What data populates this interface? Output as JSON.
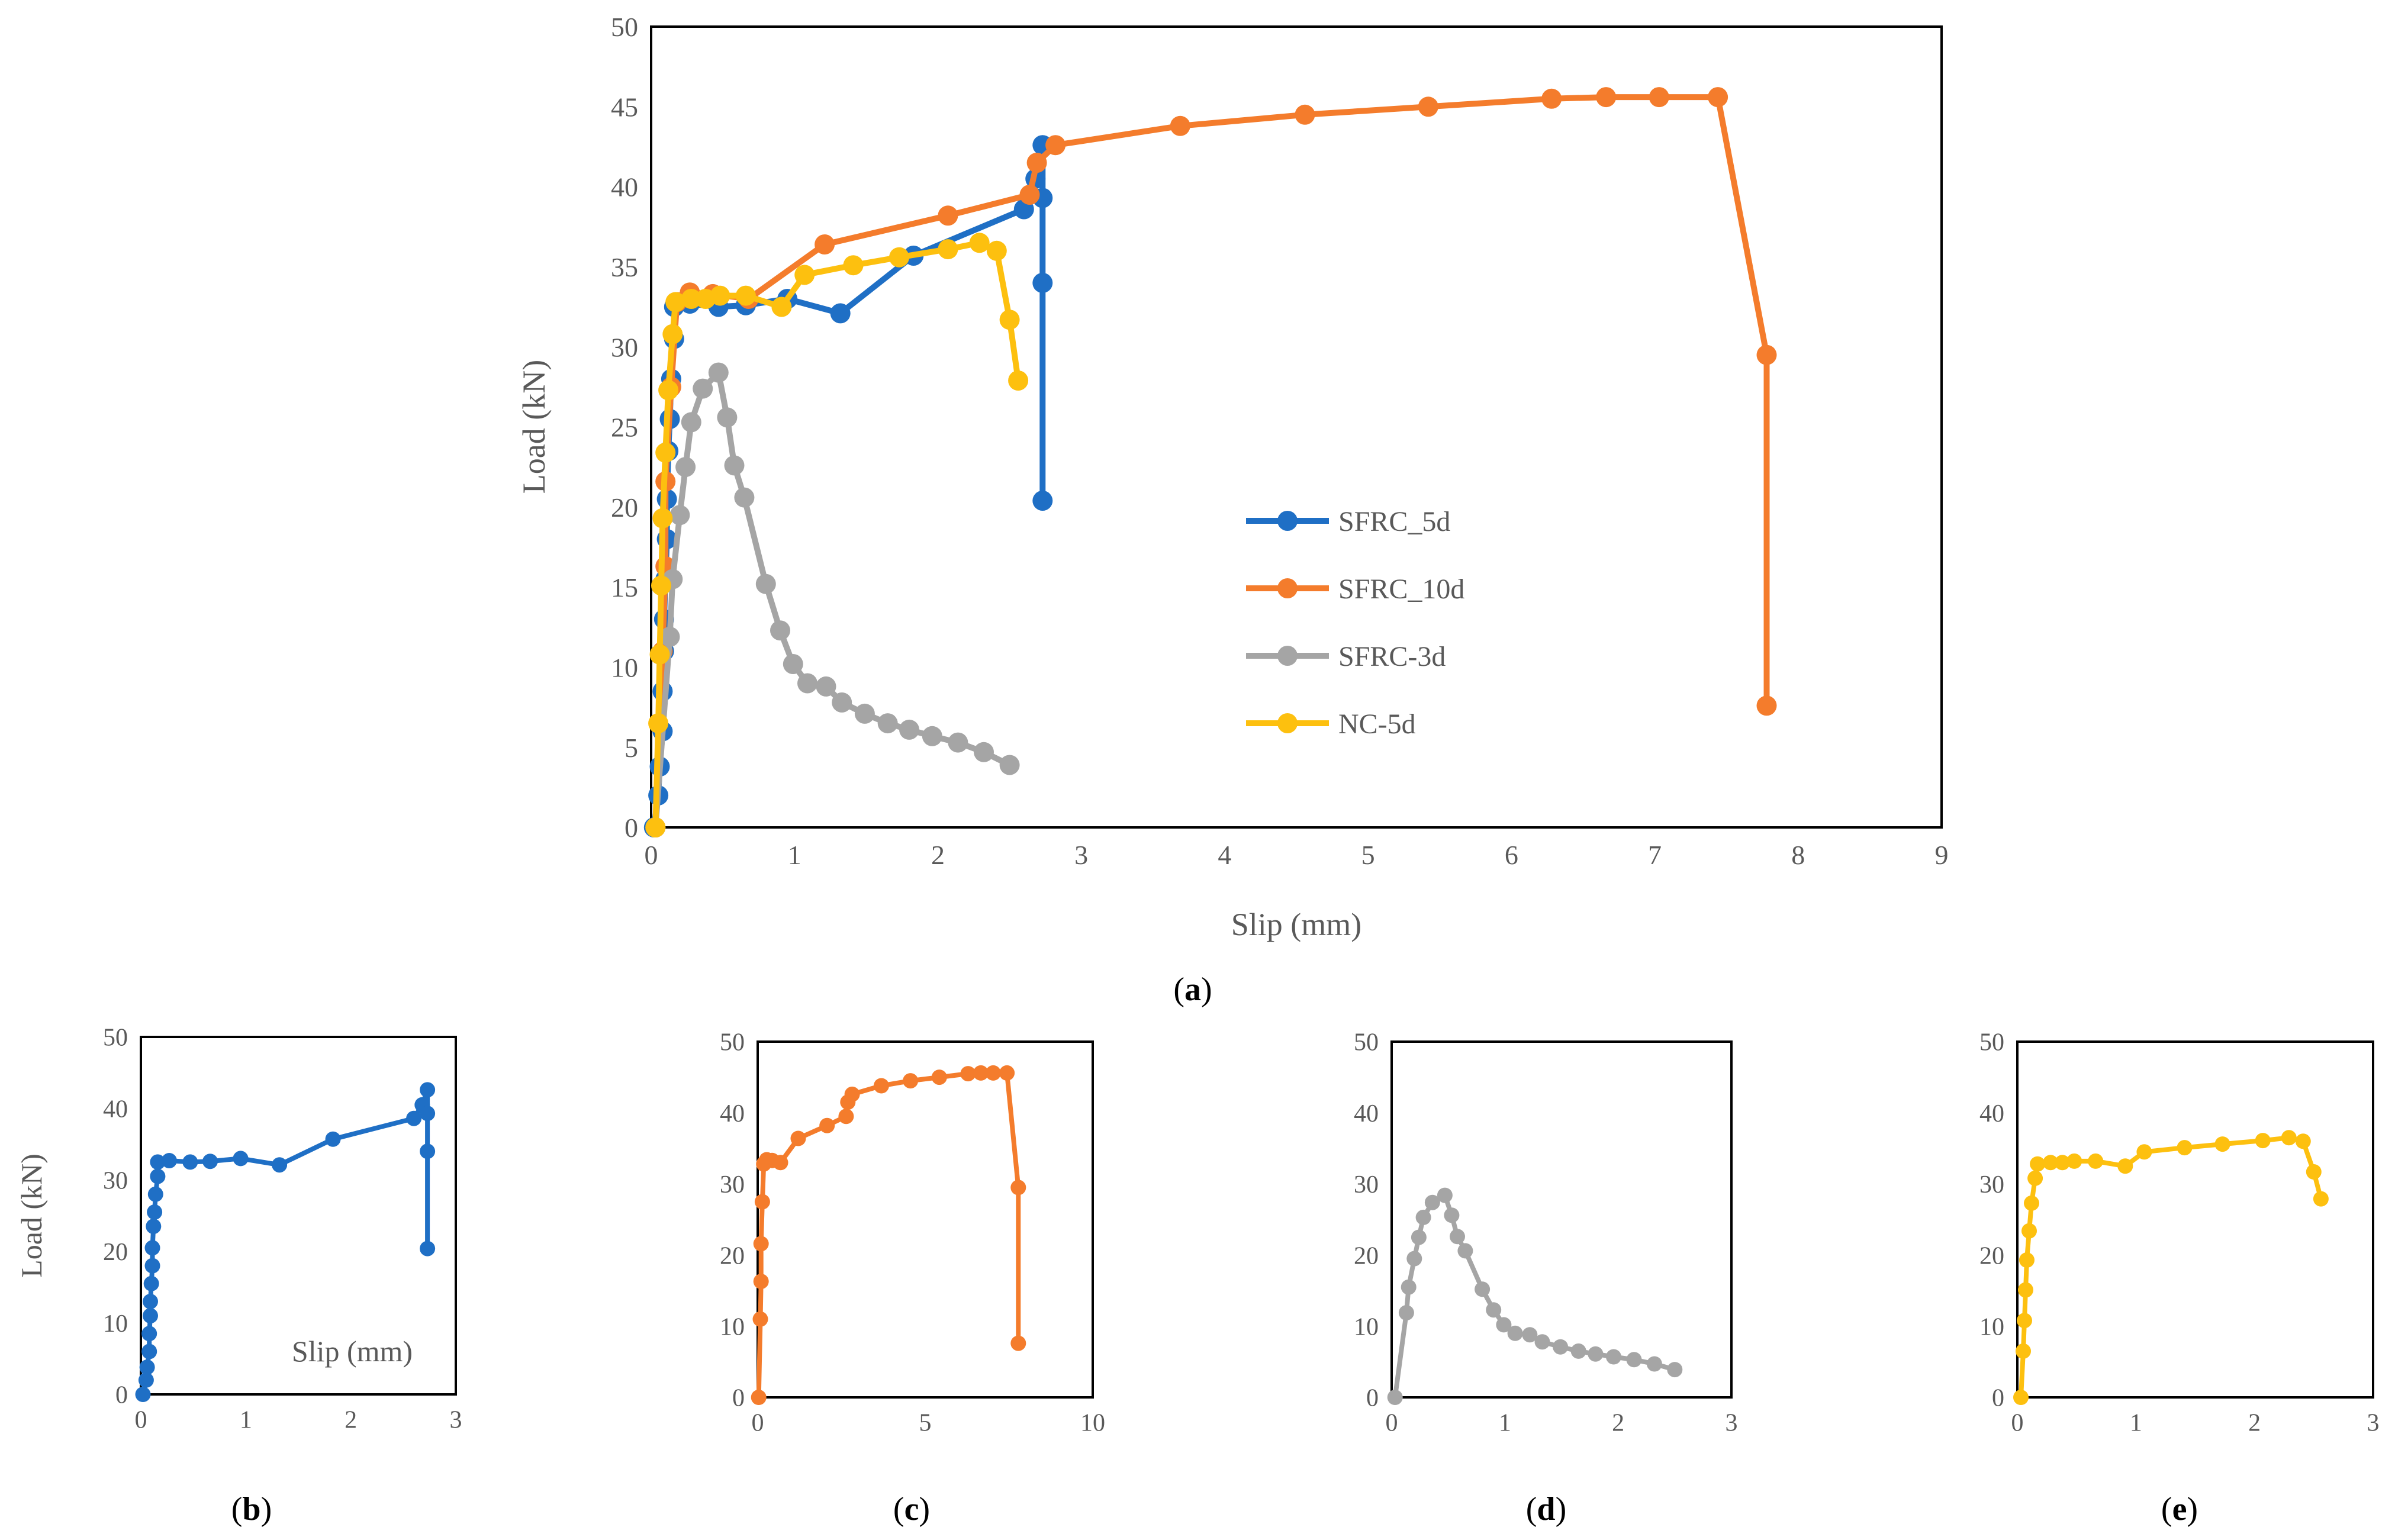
{
  "figure": {
    "caption_labels": [
      "(a)",
      "(b)",
      "(c)",
      "(d)",
      "(e)"
    ]
  },
  "colors": {
    "SFRC_5d": "#1f6fc5",
    "SFRC_10d": "#f47c2c",
    "SFRC_3d": "#a5a5a5",
    "NC_5d": "#fdc00f",
    "axis": "#000000",
    "tick_text": "#595959"
  },
  "chart_data": [
    {
      "id": "a",
      "type": "line",
      "panel_label": "(a)",
      "xlabel": "Slip (mm)",
      "ylabel": "Load (kN)",
      "xlim": [
        0,
        9
      ],
      "ylim": [
        0,
        50
      ],
      "xticks": [
        0,
        1,
        2,
        3,
        4,
        5,
        6,
        7,
        8,
        9
      ],
      "yticks": [
        0,
        5,
        10,
        15,
        20,
        25,
        30,
        35,
        40,
        45,
        50
      ],
      "legend": true,
      "legend_position": "center-right",
      "series": [
        {
          "name": "SFRC_5d",
          "color": "#1f6fc5",
          "points": [
            [
              0.02,
              0
            ],
            [
              0.05,
              2
            ],
            [
              0.06,
              3.8
            ],
            [
              0.08,
              6
            ],
            [
              0.08,
              8.5
            ],
            [
              0.09,
              11
            ],
            [
              0.09,
              13
            ],
            [
              0.1,
              15.5
            ],
            [
              0.11,
              18
            ],
            [
              0.11,
              20.5
            ],
            [
              0.12,
              23.5
            ],
            [
              0.13,
              25.5
            ],
            [
              0.14,
              28
            ],
            [
              0.16,
              30.5
            ],
            [
              0.16,
              32.5
            ],
            [
              0.27,
              32.7
            ],
            [
              0.47,
              32.5
            ],
            [
              0.66,
              32.6
            ],
            [
              0.95,
              33
            ],
            [
              1.32,
              32.1
            ],
            [
              1.83,
              35.7
            ],
            [
              2.6,
              38.6
            ],
            [
              2.68,
              40.5
            ],
            [
              2.73,
              42.6
            ],
            [
              2.73,
              39.3
            ],
            [
              2.73,
              34
            ],
            [
              2.73,
              20.4
            ]
          ]
        },
        {
          "name": "SFRC_10d",
          "color": "#f47c2c",
          "points": [
            [
              0.03,
              0
            ],
            [
              0.08,
              11
            ],
            [
              0.1,
              16.3
            ],
            [
              0.1,
              21.6
            ],
            [
              0.14,
              27.5
            ],
            [
              0.18,
              32.8
            ],
            [
              0.27,
              33.4
            ],
            [
              0.43,
              33.3
            ],
            [
              0.68,
              33
            ],
            [
              1.21,
              36.4
            ],
            [
              2.07,
              38.2
            ],
            [
              2.64,
              39.5
            ],
            [
              2.69,
              41.5
            ],
            [
              2.82,
              42.6
            ],
            [
              3.69,
              43.8
            ],
            [
              4.56,
              44.5
            ],
            [
              5.42,
              45
            ],
            [
              6.28,
              45.5
            ],
            [
              6.66,
              45.6
            ],
            [
              7.03,
              45.6
            ],
            [
              7.44,
              45.6
            ],
            [
              7.78,
              29.5
            ],
            [
              7.78,
              7.6
            ]
          ]
        },
        {
          "name": "SFRC-3d",
          "color": "#a5a5a5",
          "points": [
            [
              0.03,
              0
            ],
            [
              0.13,
              11.9
            ],
            [
              0.15,
              15.5
            ],
            [
              0.2,
              19.5
            ],
            [
              0.24,
              22.5
            ],
            [
              0.28,
              25.3
            ],
            [
              0.36,
              27.4
            ],
            [
              0.47,
              28.4
            ],
            [
              0.53,
              25.6
            ],
            [
              0.58,
              22.6
            ],
            [
              0.65,
              20.6
            ],
            [
              0.8,
              15.2
            ],
            [
              0.9,
              12.3
            ],
            [
              0.99,
              10.2
            ],
            [
              1.09,
              9
            ],
            [
              1.22,
              8.8
            ],
            [
              1.33,
              7.8
            ],
            [
              1.49,
              7.1
            ],
            [
              1.65,
              6.5
            ],
            [
              1.8,
              6.1
            ],
            [
              1.96,
              5.7
            ],
            [
              2.14,
              5.3
            ],
            [
              2.32,
              4.7
            ],
            [
              2.5,
              3.9
            ]
          ]
        },
        {
          "name": "NC-5d",
          "color": "#fdc00f",
          "points": [
            [
              0.03,
              0
            ],
            [
              0.05,
              6.5
            ],
            [
              0.06,
              10.8
            ],
            [
              0.07,
              15.1
            ],
            [
              0.08,
              19.3
            ],
            [
              0.1,
              23.4
            ],
            [
              0.12,
              27.3
            ],
            [
              0.15,
              30.8
            ],
            [
              0.17,
              32.8
            ],
            [
              0.28,
              33
            ],
            [
              0.38,
              33
            ],
            [
              0.48,
              33.2
            ],
            [
              0.66,
              33.2
            ],
            [
              0.91,
              32.5
            ],
            [
              1.07,
              34.5
            ],
            [
              1.41,
              35.1
            ],
            [
              1.73,
              35.6
            ],
            [
              2.07,
              36.1
            ],
            [
              2.29,
              36.5
            ],
            [
              2.41,
              36
            ],
            [
              2.5,
              31.7
            ],
            [
              2.56,
              27.9
            ]
          ]
        }
      ]
    },
    {
      "id": "b",
      "type": "line",
      "panel_label": "(b)",
      "xlabel": "Slip (mm)",
      "ylabel": "Load (kN)",
      "xlim": [
        0,
        3
      ],
      "ylim": [
        0,
        50
      ],
      "xticks": [
        0,
        1,
        2,
        3
      ],
      "yticks": [
        0,
        10,
        20,
        30,
        40,
        50
      ],
      "legend": false,
      "series": [
        {
          "name": "SFRC_5d",
          "color": "#1f6fc5",
          "points": [
            [
              0.02,
              0
            ],
            [
              0.05,
              2
            ],
            [
              0.06,
              3.8
            ],
            [
              0.08,
              6
            ],
            [
              0.08,
              8.5
            ],
            [
              0.09,
              11
            ],
            [
              0.09,
              13
            ],
            [
              0.1,
              15.5
            ],
            [
              0.11,
              18
            ],
            [
              0.11,
              20.5
            ],
            [
              0.12,
              23.5
            ],
            [
              0.13,
              25.5
            ],
            [
              0.14,
              28
            ],
            [
              0.16,
              30.5
            ],
            [
              0.16,
              32.5
            ],
            [
              0.27,
              32.7
            ],
            [
              0.47,
              32.5
            ],
            [
              0.66,
              32.6
            ],
            [
              0.95,
              33
            ],
            [
              1.32,
              32.1
            ],
            [
              1.83,
              35.7
            ],
            [
              2.6,
              38.6
            ],
            [
              2.68,
              40.5
            ],
            [
              2.73,
              42.6
            ],
            [
              2.73,
              39.3
            ],
            [
              2.73,
              34
            ],
            [
              2.73,
              20.4
            ]
          ]
        }
      ]
    },
    {
      "id": "c",
      "type": "line",
      "panel_label": "(c)",
      "xlabel": "",
      "ylabel": "",
      "xlim": [
        0,
        10
      ],
      "ylim": [
        0,
        50
      ],
      "xticks": [
        0,
        5,
        10
      ],
      "yticks": [
        0,
        10,
        20,
        30,
        40,
        50
      ],
      "legend": false,
      "series": [
        {
          "name": "SFRC_10d",
          "color": "#f47c2c",
          "points": [
            [
              0.03,
              0
            ],
            [
              0.08,
              11
            ],
            [
              0.1,
              16.3
            ],
            [
              0.1,
              21.6
            ],
            [
              0.14,
              27.5
            ],
            [
              0.18,
              32.8
            ],
            [
              0.27,
              33.4
            ],
            [
              0.43,
              33.3
            ],
            [
              0.68,
              33
            ],
            [
              1.21,
              36.4
            ],
            [
              2.07,
              38.2
            ],
            [
              2.64,
              39.5
            ],
            [
              2.69,
              41.5
            ],
            [
              2.82,
              42.6
            ],
            [
              3.69,
              43.8
            ],
            [
              4.56,
              44.5
            ],
            [
              5.42,
              45
            ],
            [
              6.28,
              45.5
            ],
            [
              6.66,
              45.6
            ],
            [
              7.03,
              45.6
            ],
            [
              7.44,
              45.6
            ],
            [
              7.78,
              29.5
            ],
            [
              7.78,
              7.6
            ]
          ]
        }
      ]
    },
    {
      "id": "d",
      "type": "line",
      "panel_label": "(d)",
      "xlabel": "",
      "ylabel": "",
      "xlim": [
        0,
        3
      ],
      "ylim": [
        0,
        50
      ],
      "xticks": [
        0,
        1,
        2,
        3
      ],
      "yticks": [
        0,
        10,
        20,
        30,
        40,
        50
      ],
      "legend": false,
      "series": [
        {
          "name": "SFRC-3d",
          "color": "#a5a5a5",
          "points": [
            [
              0.03,
              0
            ],
            [
              0.13,
              11.9
            ],
            [
              0.15,
              15.5
            ],
            [
              0.2,
              19.5
            ],
            [
              0.24,
              22.5
            ],
            [
              0.28,
              25.3
            ],
            [
              0.36,
              27.4
            ],
            [
              0.47,
              28.4
            ],
            [
              0.53,
              25.6
            ],
            [
              0.58,
              22.6
            ],
            [
              0.65,
              20.6
            ],
            [
              0.8,
              15.2
            ],
            [
              0.9,
              12.3
            ],
            [
              0.99,
              10.2
            ],
            [
              1.09,
              9
            ],
            [
              1.22,
              8.8
            ],
            [
              1.33,
              7.8
            ],
            [
              1.49,
              7.1
            ],
            [
              1.65,
              6.5
            ],
            [
              1.8,
              6.1
            ],
            [
              1.96,
              5.7
            ],
            [
              2.14,
              5.3
            ],
            [
              2.32,
              4.7
            ],
            [
              2.5,
              3.9
            ]
          ]
        }
      ]
    },
    {
      "id": "e",
      "type": "line",
      "panel_label": "(e)",
      "xlabel": "",
      "ylabel": "",
      "xlim": [
        0,
        3
      ],
      "ylim": [
        0,
        50
      ],
      "xticks": [
        0,
        1,
        2,
        3
      ],
      "yticks": [
        0,
        10,
        20,
        30,
        40,
        50
      ],
      "legend": false,
      "series": [
        {
          "name": "NC-5d",
          "color": "#fdc00f",
          "points": [
            [
              0.03,
              0
            ],
            [
              0.05,
              6.5
            ],
            [
              0.06,
              10.8
            ],
            [
              0.07,
              15.1
            ],
            [
              0.08,
              19.3
            ],
            [
              0.1,
              23.4
            ],
            [
              0.12,
              27.3
            ],
            [
              0.15,
              30.8
            ],
            [
              0.17,
              32.8
            ],
            [
              0.28,
              33
            ],
            [
              0.38,
              33
            ],
            [
              0.48,
              33.2
            ],
            [
              0.66,
              33.2
            ],
            [
              0.91,
              32.5
            ],
            [
              1.07,
              34.5
            ],
            [
              1.41,
              35.1
            ],
            [
              1.73,
              35.6
            ],
            [
              2.07,
              36.1
            ],
            [
              2.29,
              36.5
            ],
            [
              2.41,
              36
            ],
            [
              2.5,
              31.7
            ],
            [
              2.56,
              27.9
            ]
          ]
        }
      ]
    }
  ]
}
